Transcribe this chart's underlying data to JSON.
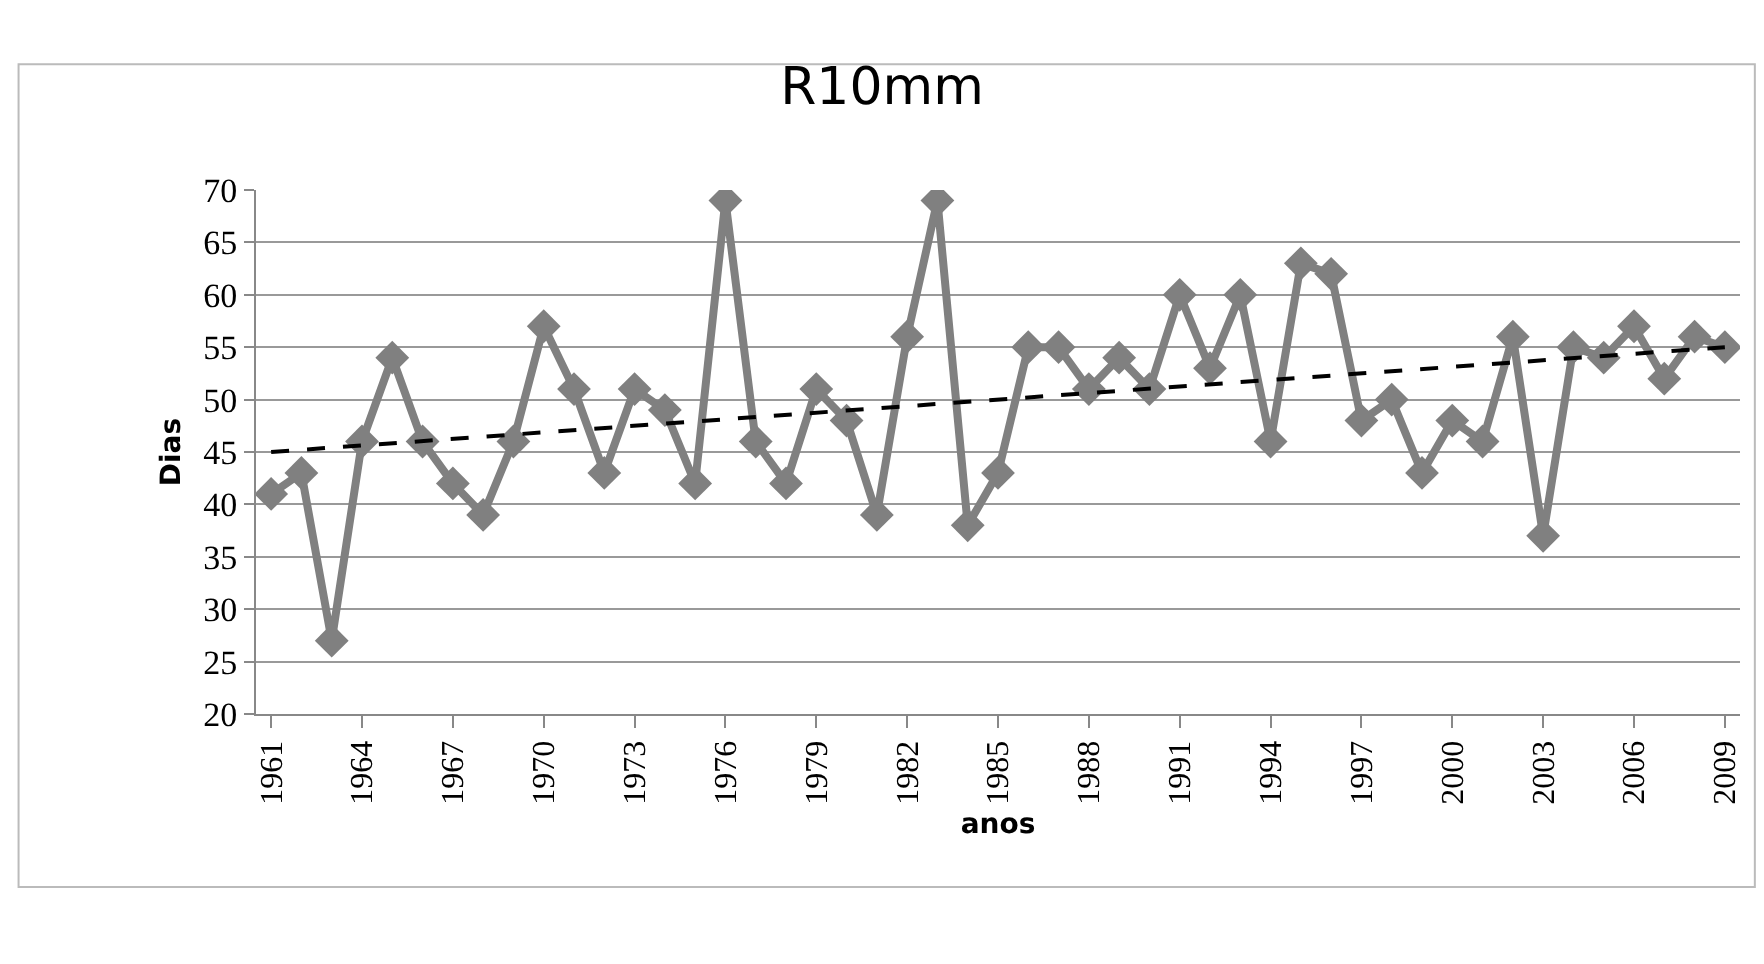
{
  "chart_data": {
    "type": "line",
    "title": "R10mm",
    "xlabel": "anos",
    "ylabel": "Dias",
    "x": [
      1961,
      1962,
      1963,
      1964,
      1965,
      1966,
      1967,
      1968,
      1969,
      1970,
      1971,
      1972,
      1973,
      1974,
      1975,
      1976,
      1977,
      1978,
      1979,
      1980,
      1981,
      1982,
      1983,
      1984,
      1985,
      1986,
      1987,
      1988,
      1989,
      1990,
      1991,
      1992,
      1993,
      1994,
      1995,
      1996,
      1997,
      1998,
      1999,
      2000,
      2001,
      2002,
      2003,
      2004,
      2005,
      2006,
      2007,
      2008,
      2009
    ],
    "series": [
      {
        "color": "#808080",
        "marker": "diamond",
        "line_style": "solid",
        "values": [
          41,
          43,
          27,
          46,
          54,
          46,
          42,
          39,
          46,
          57,
          51,
          43,
          51,
          49,
          42,
          69,
          46,
          42,
          51,
          48,
          39,
          56,
          69,
          38,
          43,
          55,
          55,
          51,
          54,
          51,
          60,
          53,
          60,
          46,
          63,
          62,
          48,
          50,
          43,
          48,
          46,
          56,
          37,
          55,
          54,
          57,
          52,
          56,
          55
        ]
      },
      {
        "color": "#000000",
        "marker": "none",
        "line_style": "dashed",
        "x": [
          1961,
          2009
        ],
        "values": [
          45,
          55
        ]
      }
    ],
    "xlim": [
      1960.5,
      2009.5
    ],
    "xticks": [
      1961,
      1964,
      1967,
      1970,
      1973,
      1976,
      1979,
      1982,
      1985,
      1988,
      1991,
      1994,
      1997,
      2000,
      2003,
      2006,
      2009
    ],
    "ylim": [
      20,
      70
    ],
    "yticks": [
      20,
      25,
      30,
      35,
      40,
      45,
      50,
      55,
      60,
      65,
      70
    ],
    "grid": "y"
  }
}
